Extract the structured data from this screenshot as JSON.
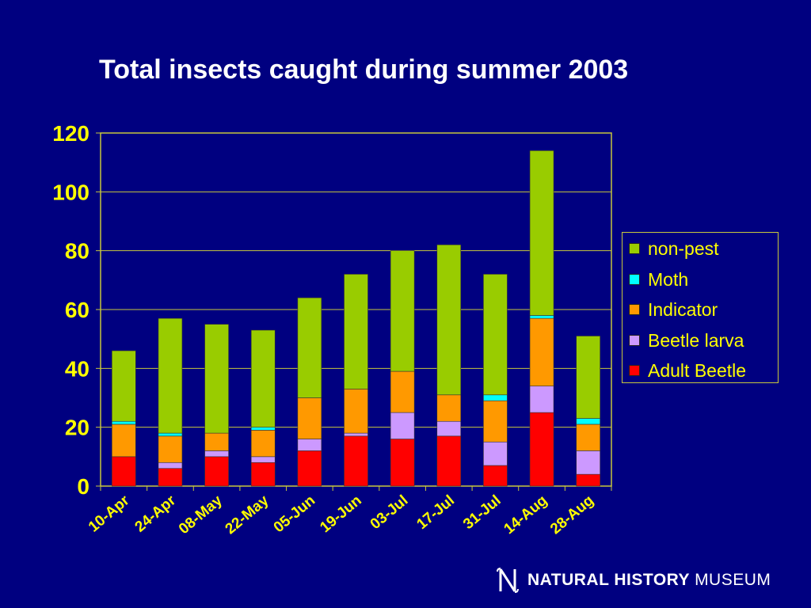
{
  "colors": {
    "background": "#000080",
    "text": "#ffff00",
    "title": "#ffffff",
    "axis": "#c8c83c"
  },
  "chart_data": {
    "type": "bar",
    "stacked": true,
    "title": "Total insects caught during summer 2003",
    "xlabel": "",
    "ylabel": "",
    "ylim": [
      0,
      120
    ],
    "yticks": [
      0,
      20,
      40,
      60,
      80,
      100,
      120
    ],
    "grid": true,
    "legend_position": "right",
    "categories": [
      "10-Apr",
      "24-Apr",
      "08-May",
      "22-May",
      "05-Jun",
      "19-Jun",
      "03-Jul",
      "17-Jul",
      "31-Jul",
      "14-Aug",
      "28-Aug"
    ],
    "series": [
      {
        "name": "Adult Beetle",
        "color": "#ff0000",
        "values": [
          10,
          6,
          10,
          8,
          12,
          17,
          16,
          17,
          7,
          25,
          4
        ]
      },
      {
        "name": "Beetle larva",
        "color": "#cc99ff",
        "values": [
          0,
          2,
          2,
          2,
          4,
          1,
          9,
          5,
          8,
          9,
          8
        ]
      },
      {
        "name": "Indicator",
        "color": "#ff9900",
        "values": [
          11,
          9,
          6,
          9,
          14,
          15,
          14,
          9,
          14,
          23,
          9
        ]
      },
      {
        "name": "Moth",
        "color": "#00ffff",
        "values": [
          1,
          1,
          0,
          1,
          0,
          0,
          0,
          0,
          2,
          1,
          2
        ]
      },
      {
        "name": "non-pest",
        "color": "#99cc00",
        "values": [
          24,
          39,
          37,
          33,
          34,
          39,
          41,
          51,
          41,
          56,
          28
        ]
      }
    ]
  },
  "legend": {
    "items": [
      {
        "label": "non-pest",
        "color": "#99cc00"
      },
      {
        "label": "Moth",
        "color": "#00ffff"
      },
      {
        "label": "Indicator",
        "color": "#ff9900"
      },
      {
        "label": "Beetle larva",
        "color": "#cc99ff"
      },
      {
        "label": "Adult Beetle",
        "color": "#ff0000"
      }
    ]
  },
  "logo": {
    "bold": "NATURAL HISTORY",
    "regular": "MUSEUM"
  }
}
